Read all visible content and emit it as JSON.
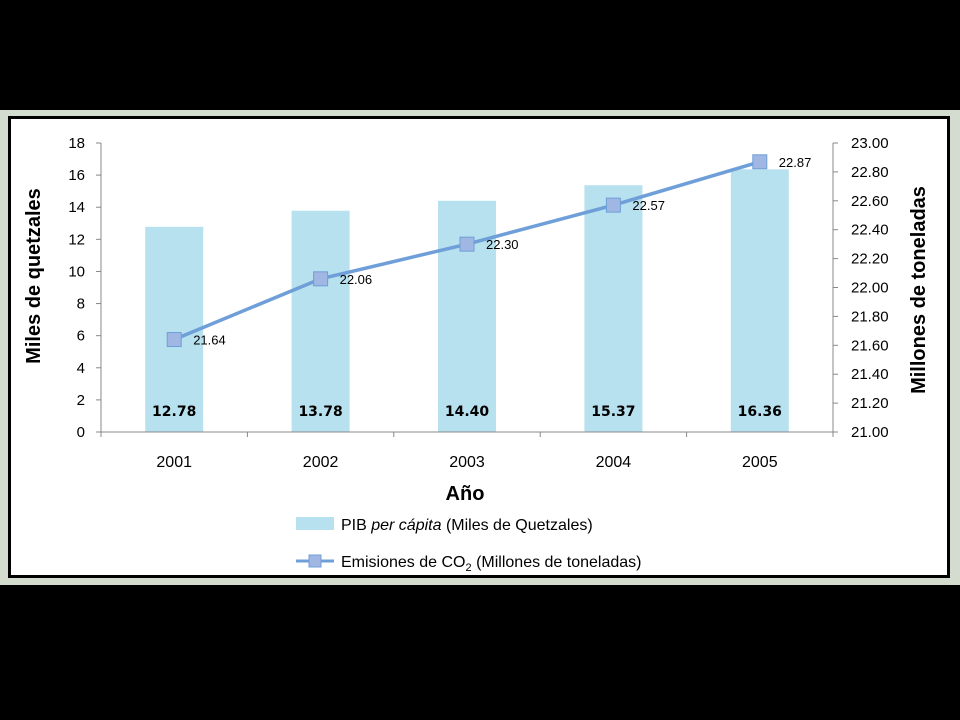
{
  "chart_data": {
    "type": "bar",
    "categories": [
      "2001",
      "2002",
      "2003",
      "2004",
      "2005"
    ],
    "series": [
      {
        "type": "bar",
        "axis": "left",
        "values": [
          12.78,
          13.78,
          14.4,
          15.37,
          16.36
        ],
        "labels": [
          "12.78",
          "13.78",
          "14.40",
          "15.37",
          "16.36"
        ],
        "color": "#b7e1ee"
      },
      {
        "type": "line",
        "axis": "right",
        "values": [
          21.64,
          22.06,
          22.3,
          22.57,
          22.87
        ],
        "labels": [
          "21.64",
          "22.06",
          "22.30",
          "22.57",
          "22.87"
        ],
        "color": "#6f9fd8",
        "marker_color": "#9fb7e2"
      }
    ],
    "xlabel": "Año",
    "ylabel": "Miles de quetzales",
    "y2label": "Millones de toneladas",
    "ylim": [
      0,
      18
    ],
    "y2lim": [
      21.0,
      23.0
    ],
    "yticks": [
      "0",
      "2",
      "4",
      "6",
      "8",
      "10",
      "12",
      "14",
      "16",
      "18"
    ],
    "y2ticks": [
      "21.00",
      "21.20",
      "21.40",
      "21.60",
      "21.80",
      "22.00",
      "22.20",
      "22.40",
      "22.60",
      "22.80",
      "23.00"
    ],
    "grid": false,
    "legend_position": "bottom"
  },
  "legend": {
    "bar_prefix": "PIB ",
    "bar_italic": "per cápita",
    "bar_suffix": " (Miles de Quetzales)",
    "line_prefix": "Emisiones de CO",
    "line_sub": "2",
    "line_suffix": " (Millones de toneladas)"
  }
}
